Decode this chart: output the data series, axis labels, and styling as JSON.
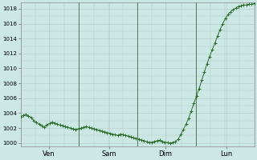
{
  "bg_color": "#cce8e4",
  "grid_color": "#b0c8c4",
  "line_color": "#2d6e2d",
  "marker_color": "#2d6e2d",
  "ylim": [
    999.5,
    1018.8
  ],
  "yticks": [
    1000,
    1002,
    1004,
    1006,
    1008,
    1010,
    1012,
    1014,
    1016,
    1018
  ],
  "day_labels": [
    "Ven",
    "Sam",
    "Dim",
    "Lun"
  ],
  "day_positions": [
    0.12,
    0.38,
    0.62,
    0.88
  ],
  "vline_positions": [
    0.25,
    0.5,
    0.75
  ],
  "total_steps": 90,
  "pressure_data": [
    1003.5,
    1003.7,
    1003.8,
    1003.6,
    1003.4,
    1003.0,
    1002.8,
    1002.5,
    1002.3,
    1002.1,
    1002.4,
    1002.6,
    1002.8,
    1002.7,
    1002.5,
    1002.4,
    1002.3,
    1002.2,
    1002.1,
    1002.0,
    1001.9,
    1001.8,
    1001.9,
    1002.0,
    1002.1,
    1002.2,
    1002.1,
    1002.0,
    1001.9,
    1001.8,
    1001.7,
    1001.6,
    1001.5,
    1001.4,
    1001.3,
    1001.2,
    1001.1,
    1001.0,
    1001.2,
    1001.1,
    1001.0,
    1000.9,
    1000.8,
    1000.7,
    1000.6,
    1000.5,
    1000.4,
    1000.3,
    1000.15,
    1000.05,
    1000.1,
    1000.2,
    1000.3,
    1000.35,
    1000.2,
    1000.1,
    1000.05,
    1000.0,
    1000.05,
    1000.2,
    1000.5,
    1001.1,
    1001.8,
    1002.5,
    1003.3,
    1004.3,
    1005.3,
    1006.3,
    1007.3,
    1008.4,
    1009.5,
    1010.6,
    1011.6,
    1012.5,
    1013.4,
    1014.3,
    1015.2,
    1016.0,
    1016.7,
    1017.2,
    1017.6,
    1017.9,
    1018.1,
    1018.3,
    1018.4,
    1018.5,
    1018.5,
    1018.6,
    1018.6,
    1018.7
  ]
}
